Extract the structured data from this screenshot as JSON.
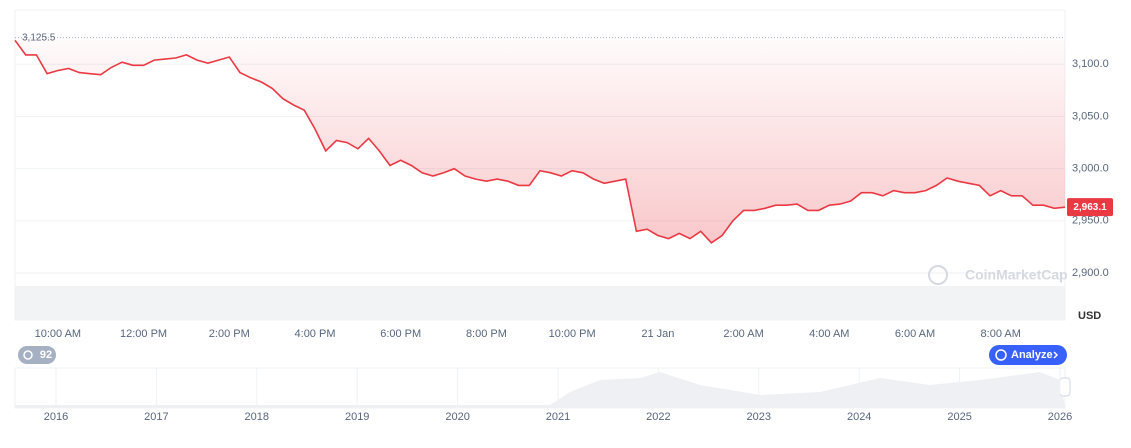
{
  "chart_data": {
    "type": "line",
    "values": [
      3123,
      3109,
      3109,
      3091,
      3094,
      3096,
      3092,
      3091,
      3090,
      3097,
      3102,
      3099,
      3099,
      3104,
      3105,
      3106,
      3109,
      3104,
      3101,
      3104,
      3107,
      3092,
      3087,
      3083,
      3077,
      3067,
      3061,
      3056,
      3038,
      3017,
      3027,
      3025,
      3019,
      3029,
      3017,
      3003,
      3008,
      3003,
      2996,
      2993,
      2996,
      3000,
      2993,
      2990,
      2988,
      2990,
      2988,
      2984,
      2984,
      2998,
      2996,
      2993,
      2998,
      2996,
      2990,
      2986,
      2988,
      2990,
      2940,
      2942,
      2936,
      2933,
      2938,
      2933,
      2940,
      2929,
      2936,
      2950,
      2960,
      2960,
      2962,
      2965,
      2965,
      2966,
      2960,
      2960,
      2965,
      2966,
      2969,
      2977,
      2977,
      2974,
      2979,
      2977,
      2977,
      2979,
      2984,
      2991,
      2988,
      2986,
      2984,
      2974,
      2979,
      2974,
      2974,
      2965,
      2965,
      2962,
      2963.1
    ],
    "categories": [
      null,
      null,
      null,
      null,
      "10:00 AM",
      null,
      null,
      null,
      null,
      null,
      null,
      null,
      "12:00 PM",
      null,
      null,
      null,
      null,
      null,
      null,
      null,
      "2:00 PM",
      null,
      null,
      null,
      null,
      null,
      null,
      null,
      "4:00 PM",
      null,
      null,
      null,
      null,
      null,
      null,
      null,
      "6:00 PM",
      null,
      null,
      null,
      null,
      null,
      null,
      null,
      "8:00 PM",
      null,
      null,
      null,
      null,
      null,
      null,
      null,
      "10:00 PM",
      null,
      null,
      null,
      null,
      null,
      null,
      null,
      "21 Jan",
      null,
      null,
      null,
      null,
      null,
      null,
      null,
      "2:00 AM",
      null,
      null,
      null,
      null,
      null,
      null,
      null,
      "4:00 AM",
      null,
      null,
      null,
      null,
      null,
      null,
      null,
      "6:00 AM",
      null,
      null,
      null,
      null,
      null,
      null,
      null,
      "8:00 AM",
      null,
      null,
      null,
      null,
      null,
      null
    ],
    "color": "#ea3943",
    "ylim": [
      2855,
      3152
    ],
    "yticks": [
      {
        "value": 2900,
        "label": "2,900.0"
      },
      {
        "value": 2950,
        "label": "2,950.0"
      },
      {
        "value": 3000,
        "label": "3,000.0"
      },
      {
        "value": 3050,
        "label": "3,050.0"
      },
      {
        "value": 3100,
        "label": "3,100.0"
      }
    ],
    "grid": true,
    "y_unit": "USD",
    "reference_line": {
      "value": 3125.5,
      "label": "3,125.5"
    },
    "last_price": {
      "value": 2963.1,
      "label": "2,963.1"
    },
    "watermark": "CoinMarketCap",
    "history_count": 92,
    "analyze_button": "Analyze",
    "navigator_years": [
      "2016",
      "2017",
      "2018",
      "2019",
      "2020",
      "2021",
      "2022",
      "2023",
      "2024",
      "2025",
      "2026"
    ]
  }
}
